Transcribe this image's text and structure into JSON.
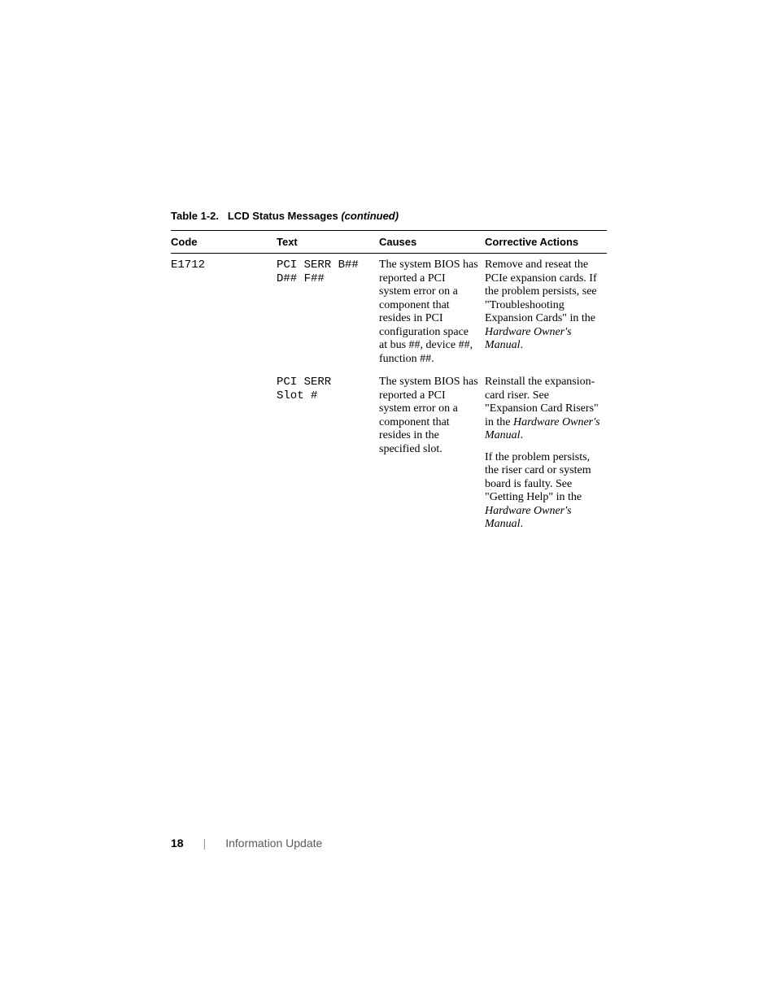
{
  "caption": {
    "label": "Table 1-2.",
    "title": "LCD Status Messages",
    "continued": "(continued)"
  },
  "headers": {
    "code": "Code",
    "text": "Text",
    "causes": "Causes",
    "corrective": "Corrective Actions"
  },
  "rows": [
    {
      "code": "E1712",
      "text": "PCI SERR B##\nD## F##",
      "cause": "The system BIOS has reported a PCI system error on a component that resides in PCI configuration space at bus ##, device ##, function ##.",
      "corrective": [
        {
          "pre": "Remove and reseat the PCIe expansion cards. If the problem persists, see \"Troubleshooting Expansion Cards\" in the ",
          "ital": "Hardware Owner's Manual",
          "post": "."
        }
      ]
    },
    {
      "code": "",
      "text": "PCI SERR\nSlot #",
      "cause": "The system BIOS has reported a PCI system error on a component that resides in the specified slot.",
      "corrective": [
        {
          "pre": "Reinstall the expansion-card riser. See \"Expansion Card Risers\" in the ",
          "ital": "Hardware Owner's Manual",
          "post": "."
        },
        {
          "pre": "If the problem persists, the riser card or system board is faulty. See \"Getting Help\" in the ",
          "ital": "Hardware Owner's Manual",
          "post": "."
        }
      ]
    }
  ],
  "footer": {
    "page": "18",
    "divider": "|",
    "section": "Information Update"
  },
  "colors": {
    "text": "#000000",
    "footer_section": "#5a5a5a",
    "divider": "#9a9a9a",
    "background": "#ffffff",
    "rule": "#000000"
  },
  "fonts": {
    "serif": "Times New Roman",
    "sans": "Arial",
    "mono": "Courier New",
    "caption_size_pt": 10,
    "header_size_pt": 10,
    "body_size_pt": 11,
    "footer_size_pt": 11
  }
}
